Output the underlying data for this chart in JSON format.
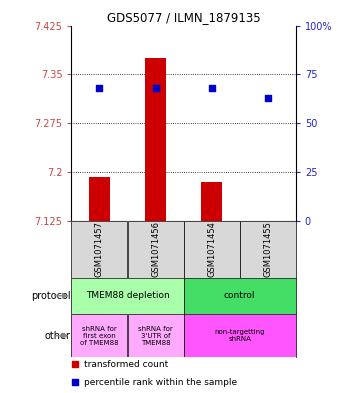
{
  "title": "GDS5077 / ILMN_1879135",
  "samples": [
    "GSM1071457",
    "GSM1071456",
    "GSM1071454",
    "GSM1071455"
  ],
  "bar_values": [
    7.193,
    7.375,
    7.185,
    7.125
  ],
  "bar_base": 7.125,
  "blue_values": [
    68,
    68,
    68,
    63
  ],
  "ylim": [
    7.125,
    7.425
  ],
  "yticks_left": [
    7.125,
    7.2,
    7.275,
    7.35,
    7.425
  ],
  "yticks_right": [
    0,
    25,
    50,
    75,
    100
  ],
  "ytick_labels_left": [
    "7.125",
    "7.2",
    "7.275",
    "7.35",
    "7.425"
  ],
  "ytick_labels_right": [
    "0",
    "25",
    "50",
    "75",
    "100%"
  ],
  "hline_values": [
    7.2,
    7.275,
    7.35
  ],
  "bar_color": "#cc0000",
  "blue_color": "#0000cc",
  "proto_groups": [
    {
      "span": [
        0,
        2
      ],
      "label": "TMEM88 depletion",
      "color": "#aaffaa"
    },
    {
      "span": [
        2,
        4
      ],
      "label": "control",
      "color": "#44dd66"
    }
  ],
  "other_groups": [
    {
      "span": [
        0,
        1
      ],
      "label": "shRNA for\nfirst exon\nof TMEM88",
      "color": "#ffaaff"
    },
    {
      "span": [
        1,
        2
      ],
      "label": "shRNA for\n3'UTR of\nTMEM88",
      "color": "#ffaaff"
    },
    {
      "span": [
        2,
        4
      ],
      "label": "non-targetting\nshRNA",
      "color": "#ff55ff"
    }
  ],
  "legend_bar_label": "transformed count",
  "legend_blue_label": "percentile rank within the sample",
  "left_color": "#cc4444",
  "right_color": "#2222cc",
  "gray_cell": "#d8d8d8",
  "figsize": [
    3.4,
    3.93
  ],
  "dpi": 100
}
